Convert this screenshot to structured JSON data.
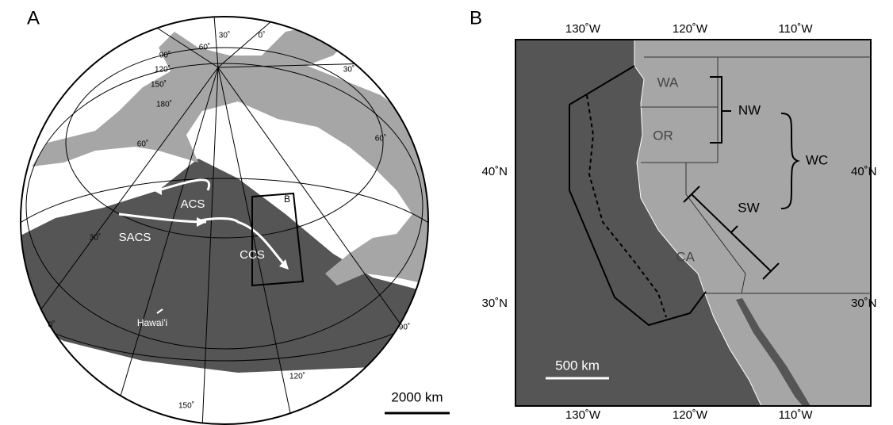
{
  "panel_a": {
    "label": "A",
    "graticule_labels": [
      "30˚",
      "60˚",
      "0˚",
      "90˚",
      "120˚",
      "150˚",
      "180˚",
      "60˚",
      "30˚",
      "60˚",
      "30˚",
      "0˚",
      "150˚",
      "120˚",
      "90˚"
    ],
    "currents": [
      "ACS",
      "SACS",
      "CCS"
    ],
    "inset_label": "B",
    "island": "Hawai'i",
    "scale_bar": "2000 km"
  },
  "panel_b": {
    "label": "B",
    "top_ticks": [
      "130˚W",
      "120˚W",
      "110˚W"
    ],
    "bottom_ticks": [
      "130˚W",
      "120˚W",
      "110˚W"
    ],
    "left_ticks": [
      "40˚N",
      "30˚N"
    ],
    "right_ticks": [
      "40˚N",
      "30˚N"
    ],
    "states": [
      "WA",
      "OR",
      "CA"
    ],
    "regions": [
      "NW",
      "WC",
      "SW"
    ],
    "scale_bar": "500 km"
  }
}
